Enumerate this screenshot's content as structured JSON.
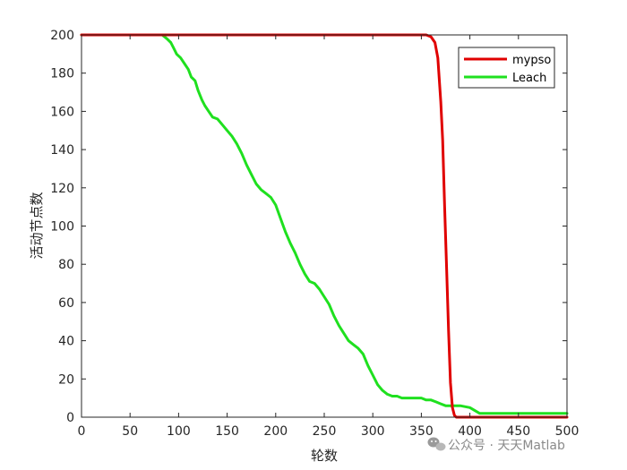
{
  "chart_data": {
    "type": "line",
    "title": "",
    "xlabel": "轮数",
    "ylabel": "活动节点数",
    "xlim": [
      0,
      500
    ],
    "ylim": [
      0,
      200
    ],
    "xticks": [
      0,
      50,
      100,
      150,
      200,
      250,
      300,
      350,
      400,
      450,
      500
    ],
    "yticks": [
      0,
      20,
      40,
      60,
      80,
      100,
      120,
      140,
      160,
      180,
      200
    ],
    "grid": false,
    "legend_position": "top-right",
    "series": [
      {
        "name": "mypso",
        "color": "#e00000",
        "x": [
          0,
          355,
          360,
          364,
          367,
          370,
          372,
          374,
          376,
          378,
          380,
          382,
          384,
          386,
          390,
          500
        ],
        "y": [
          200,
          200,
          199,
          196,
          188,
          165,
          145,
          110,
          78,
          45,
          18,
          5,
          1,
          0,
          0,
          0
        ]
      },
      {
        "name": "Leach",
        "color": "#1fe01f",
        "x": [
          0,
          83,
          88,
          92,
          95,
          98,
          102,
          106,
          110,
          113,
          117,
          120,
          124,
          127,
          131,
          135,
          140,
          145,
          150,
          155,
          160,
          165,
          170,
          175,
          180,
          185,
          190,
          195,
          200,
          205,
          210,
          215,
          220,
          225,
          230,
          235,
          240,
          245,
          250,
          255,
          260,
          265,
          270,
          275,
          280,
          285,
          290,
          295,
          300,
          305,
          310,
          315,
          320,
          325,
          330,
          335,
          340,
          345,
          350,
          355,
          360,
          365,
          370,
          375,
          380,
          390,
          400,
          410,
          420,
          430,
          440,
          450,
          458,
          462,
          470,
          480,
          490,
          500
        ],
        "y": [
          200,
          200,
          198,
          196,
          193,
          190,
          188,
          185,
          182,
          178,
          176,
          171,
          166,
          163,
          160,
          157,
          156,
          153,
          150,
          147,
          143,
          138,
          132,
          127,
          122,
          119,
          117,
          115,
          111,
          104,
          97,
          91,
          86,
          80,
          75,
          71,
          70,
          67,
          63,
          59,
          53,
          48,
          44,
          40,
          38,
          36,
          33,
          27,
          22,
          17,
          14,
          12,
          11,
          11,
          10,
          10,
          10,
          10,
          10,
          9,
          9,
          8,
          7,
          6,
          6,
          6,
          5,
          2,
          2,
          2,
          2,
          2,
          2,
          2,
          2,
          2,
          2,
          2
        ]
      }
    ]
  },
  "watermark": {
    "icon": "wechat-icon",
    "text": "公众号 · 天天Matlab"
  }
}
